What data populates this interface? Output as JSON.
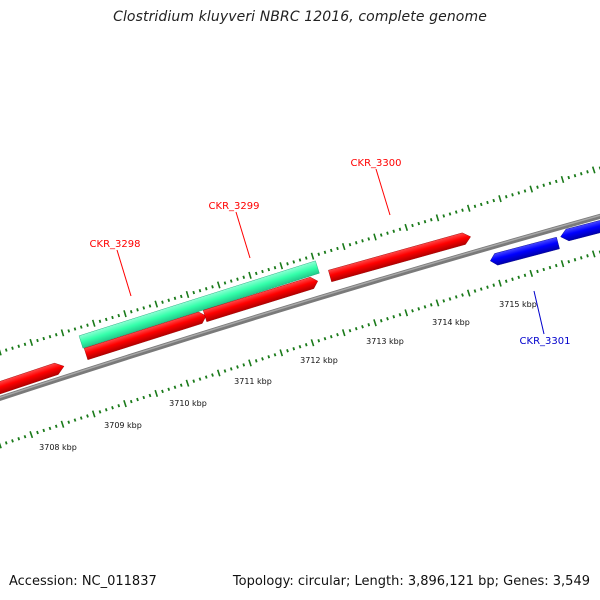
{
  "title": "Clostridium kluyveri NBRC 12016, complete genome",
  "footer": {
    "accession": "Accession: NC_011837",
    "summary": "Topology: circular; Length: 3,896,121 bp; Genes: 3,549"
  },
  "colors": {
    "cds_red": "#ff0000",
    "cds_blue": "#0000ff",
    "rna_teal": "#33ffaa",
    "tick_green": "#1a7a1a",
    "backbone_gray": "#808080"
  },
  "position_labels": [
    "3708 kbp",
    "3709 kbp",
    "3710 kbp",
    "3711 kbp",
    "3712 kbp",
    "3713 kbp",
    "3714 kbp",
    "3715 kbp"
  ],
  "genes": [
    {
      "label": "CKR_3298",
      "color": "#ff0000"
    },
    {
      "label": "CKR_3299",
      "color": "#ff0000"
    },
    {
      "label": "CKR_3300",
      "color": "#ff0000"
    },
    {
      "label": "CKR_3301",
      "color": "#0000ff"
    }
  ]
}
